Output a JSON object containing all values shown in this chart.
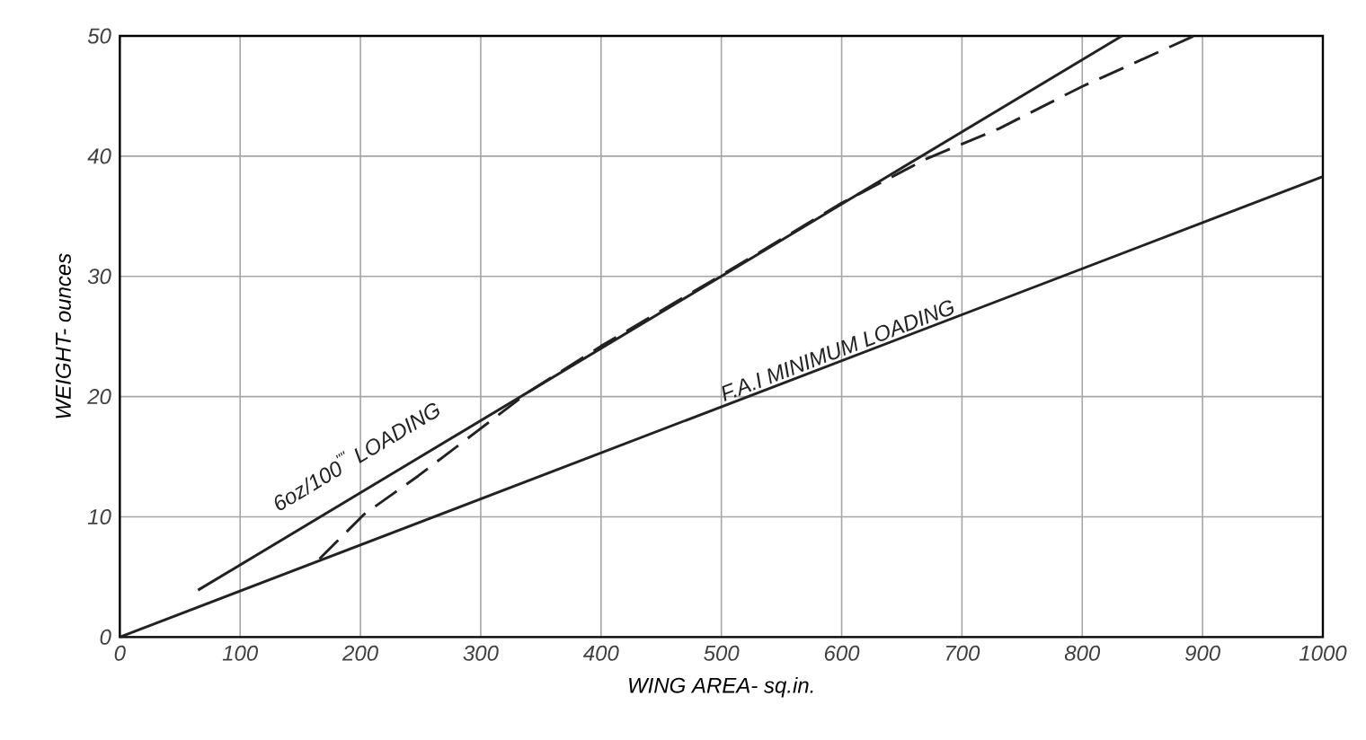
{
  "chart_data": {
    "type": "line",
    "xlabel": "WING AREA- sq.in.",
    "ylabel": "WEIGHT- ounces",
    "xlim": [
      0,
      1000
    ],
    "ylim": [
      0,
      50
    ],
    "xticks": [
      0,
      100,
      200,
      300,
      400,
      500,
      600,
      700,
      800,
      900,
      1000
    ],
    "yticks": [
      0,
      10,
      20,
      30,
      40,
      50
    ],
    "grid": true,
    "legend": false,
    "marker": "none",
    "series": [
      {
        "name": "6oz/100$^{\"\"}$ LOADING",
        "color": "#222222",
        "line_style": "solid",
        "x": [
          65,
          833
        ],
        "values": [
          3.9,
          50
        ]
      },
      {
        "name": "F.A.I MINIMUM LOADING",
        "color": "#222222",
        "line_style": "solid",
        "x": [
          0,
          1000
        ],
        "values": [
          0,
          38.3
        ]
      },
      {
        "color": "#222222",
        "line_style": "dashed",
        "x": [
          166,
          203,
          248,
          298,
          340,
          400,
          500,
          600,
          671,
          731,
          800,
          893
        ],
        "values": [
          6.5,
          10.2,
          13.4,
          17.2,
          20.4,
          24.2,
          30.1,
          36.1,
          39.8,
          42.3,
          45.8,
          50
        ]
      }
    ]
  }
}
